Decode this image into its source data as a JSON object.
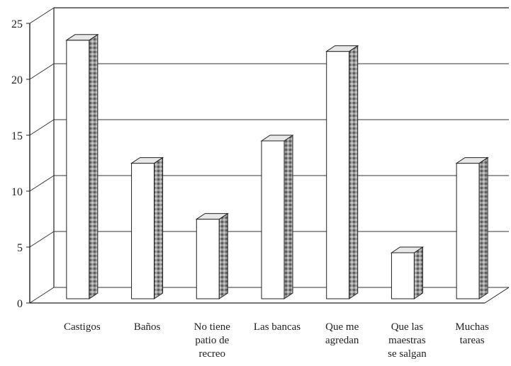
{
  "chart_data": {
    "type": "bar",
    "title": "",
    "xlabel": "",
    "ylabel": "",
    "ylim": [
      0,
      25
    ],
    "yticks": [
      0,
      5,
      10,
      15,
      20,
      25
    ],
    "grid": true,
    "style": "3d-column",
    "categories": [
      [
        "Castigos"
      ],
      [
        "Baños"
      ],
      [
        "No tiene",
        "patio de",
        "recreo"
      ],
      [
        "Las bancas"
      ],
      [
        "Que me",
        "agredan"
      ],
      [
        "Que las",
        "maestras",
        "se salgan"
      ],
      [
        "Muchas",
        "tareas"
      ]
    ],
    "values": [
      24,
      13,
      8,
      15,
      23,
      5,
      13
    ],
    "colors": {
      "bar_front": "#ffffff",
      "bar_side": "#8f8f8f",
      "grid": "#333333",
      "axis": "#222222"
    }
  }
}
